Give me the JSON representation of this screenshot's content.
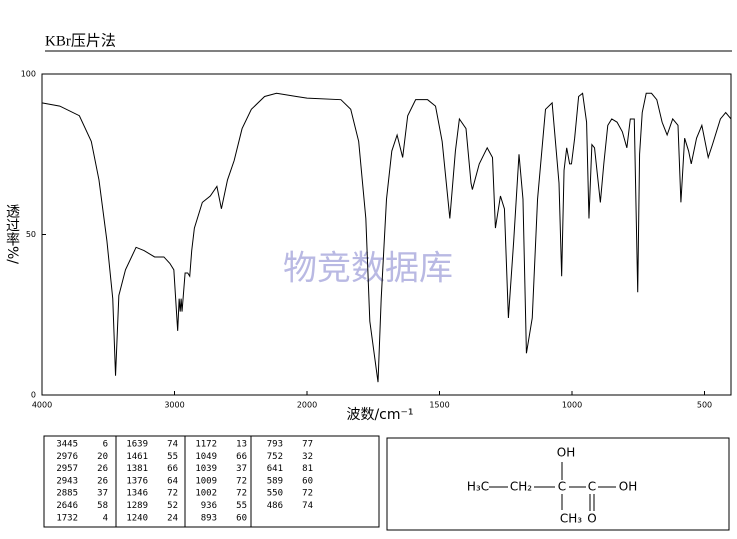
{
  "chart_data": {
    "type": "line",
    "title": "KBr压片法",
    "xlabel": "波数/cm⁻¹",
    "ylabel": "透过率%/",
    "watermark": "物竞数据库",
    "color": "#000000",
    "xlim": [
      4000,
      400
    ],
    "x_scale_change": 2000,
    "xticks": [
      4000,
      3000,
      2000,
      1500,
      1000,
      500
    ],
    "ylim": [
      0,
      100
    ],
    "yticks": [
      0,
      50,
      100
    ],
    "x": [
      4000,
      3866,
      3718,
      3628,
      3570,
      3510,
      3466,
      3445,
      3420,
      3370,
      3290,
      3230,
      3150,
      3080,
      3035,
      3005,
      2976,
      2965,
      2957,
      2950,
      2943,
      2920,
      2900,
      2885,
      2870,
      2850,
      2790,
      2730,
      2680,
      2646,
      2600,
      2550,
      2490,
      2420,
      2320,
      2230,
      2080,
      2000,
      1872,
      1835,
      1805,
      1778,
      1763,
      1732,
      1720,
      1700,
      1680,
      1660,
      1639,
      1620,
      1590,
      1545,
      1515,
      1490,
      1461,
      1440,
      1425,
      1400,
      1381,
      1376,
      1350,
      1320,
      1300,
      1289,
      1270,
      1255,
      1240,
      1220,
      1200,
      1185,
      1172,
      1150,
      1130,
      1100,
      1075,
      1049,
      1039,
      1030,
      1020,
      1009,
      1002,
      990,
      975,
      960,
      945,
      936,
      925,
      915,
      893,
      880,
      865,
      850,
      830,
      810,
      793,
      780,
      765,
      752,
      745,
      735,
      720,
      700,
      680,
      660,
      641,
      620,
      600,
      589,
      575,
      560,
      550,
      530,
      510,
      486,
      470,
      440,
      420,
      400
    ],
    "values": [
      91,
      90,
      87,
      79,
      67,
      48,
      30,
      6,
      31,
      39,
      46,
      45,
      43,
      43,
      41,
      39,
      20,
      30,
      26,
      30,
      26,
      38,
      38,
      37,
      45,
      52,
      60,
      62,
      65,
      58,
      67,
      73,
      83,
      89,
      93,
      94,
      93,
      92.5,
      92,
      89,
      79,
      55,
      23,
      4,
      30,
      61,
      76,
      81,
      74,
      87,
      92,
      92,
      90,
      79,
      55,
      76,
      86,
      83,
      66,
      64,
      72,
      77,
      74,
      52,
      62,
      58,
      24,
      48,
      75,
      61,
      13,
      24,
      61,
      89,
      91,
      66,
      37,
      70,
      77,
      72,
      72,
      80,
      93,
      94,
      85,
      55,
      78,
      77,
      60,
      72,
      84,
      86,
      85,
      82,
      77,
      86,
      86,
      32,
      75,
      88,
      94,
      94,
      92,
      85,
      81,
      86,
      84,
      60,
      80,
      76,
      72,
      80,
      84,
      74,
      78,
      86,
      88,
      86
    ],
    "peak_table": [
      [
        [
          3445,
          6
        ],
        [
          2976,
          20
        ],
        [
          2957,
          26
        ],
        [
          2943,
          26
        ],
        [
          2885,
          37
        ],
        [
          2646,
          58
        ],
        [
          1732,
          4
        ]
      ],
      [
        [
          1639,
          74
        ],
        [
          1461,
          55
        ],
        [
          1381,
          66
        ],
        [
          1376,
          64
        ],
        [
          1346,
          72
        ],
        [
          1289,
          52
        ],
        [
          1240,
          24
        ]
      ],
      [
        [
          1172,
          13
        ],
        [
          1049,
          66
        ],
        [
          1039,
          37
        ],
        [
          1009,
          72
        ],
        [
          1002,
          72
        ],
        [
          936,
          55
        ],
        [
          893,
          60
        ]
      ],
      [
        [
          793,
          77
        ],
        [
          752,
          32
        ],
        [
          641,
          81
        ],
        [
          589,
          60
        ],
        [
          550,
          72
        ],
        [
          486,
          74
        ]
      ]
    ],
    "structure": {
      "labels": [
        "OH",
        "H₃C",
        "CH₂",
        "C",
        "C",
        "OH",
        "CH₃",
        "O"
      ]
    }
  }
}
